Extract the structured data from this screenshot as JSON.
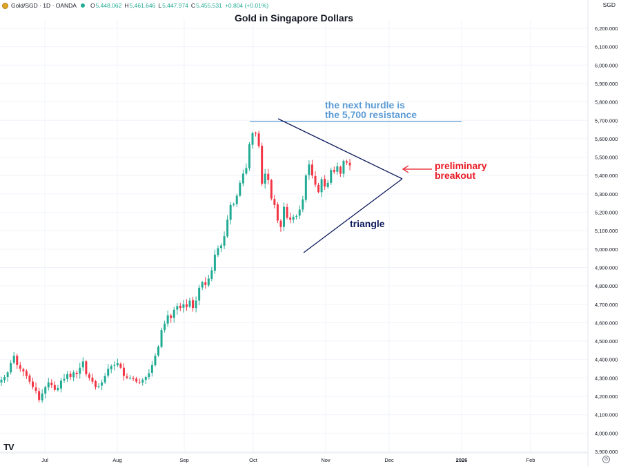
{
  "header": {
    "symbol": "Gold/SGD · 1D · OANDA",
    "open_label": "O",
    "open": "5,448.062",
    "high_label": "H",
    "high": "5,461.646",
    "low_label": "L",
    "low": "5,447.974",
    "close_label": "C",
    "close": "5,455.531",
    "change": "+0.804 (+0.01%)",
    "currency": "SGD"
  },
  "logo_text": "TV",
  "colors": {
    "up": "#22ab94",
    "down": "#f23645",
    "trendline": "#0d1a5c",
    "resistance": "#5b9bd5",
    "breakout": "#e81923"
  },
  "chart_data": {
    "type": "candlestick",
    "title": "Gold in Singapore Dollars",
    "xlabel": "",
    "ylabel": "",
    "ylim": [
      3850,
      6250
    ],
    "y_ticks": [
      "3,900.000",
      "4,000.000",
      "4,100.000",
      "4,200.000",
      "4,300.000",
      "4,400.000",
      "4,500.000",
      "4,600.000",
      "4,700.000",
      "4,800.000",
      "4,900.000",
      "5,000.000",
      "5,100.000",
      "5,200.000",
      "5,300.000",
      "5,400.000",
      "5,500.000",
      "5,600.000",
      "5,700.000",
      "5,800.000",
      "5,900.000",
      "6,000.000",
      "6,100.000",
      "6,200.000"
    ],
    "x_ticks": [
      "Jul",
      "Aug",
      "Sep",
      "Oct",
      "Nov",
      "Dec",
      "2026",
      "Feb"
    ],
    "grid": true,
    "series": [
      {
        "values": [
          4290,
          4305,
          4330,
          4380,
          4420,
          4370,
          4350,
          4335,
          4310,
          4280,
          4250,
          4230,
          4180,
          4215,
          4250,
          4275,
          4260,
          4235,
          4245,
          4285,
          4295,
          4320,
          4305,
          4330,
          4320,
          4355,
          4390,
          4320,
          4300,
          4280,
          4250,
          4255,
          4275,
          4310,
          4350,
          4365,
          4370,
          4380,
          4355,
          4310,
          4300,
          4300,
          4295,
          4280,
          4275,
          4290,
          4305,
          4325,
          4370,
          4420,
          4470,
          4560,
          4595,
          4640,
          4625,
          4670,
          4690,
          4680,
          4700,
          4685,
          4720,
          4680,
          4720,
          4790,
          4820,
          4805,
          4840,
          4885,
          4970,
          5005,
          5020,
          5070,
          5160,
          5240,
          5245,
          5290,
          5360,
          5410,
          5440,
          5570,
          5630,
          5630,
          5560,
          5355,
          5410,
          5375,
          5275,
          5240,
          5155,
          5120,
          5230,
          5170,
          5160,
          5175,
          5180,
          5215,
          5270,
          5400,
          5460,
          5400,
          5350,
          5310,
          5380,
          5340,
          5360,
          5430,
          5420,
          5450,
          5410,
          5480,
          5470,
          5455
        ]
      }
    ],
    "annotations": {
      "resistance_text_1": "the next hurdle is",
      "resistance_text_2": "the 5,700 resistance",
      "triangle_label": "triangle",
      "breakout_text_1": "preliminary",
      "breakout_text_2": "breakout"
    }
  }
}
